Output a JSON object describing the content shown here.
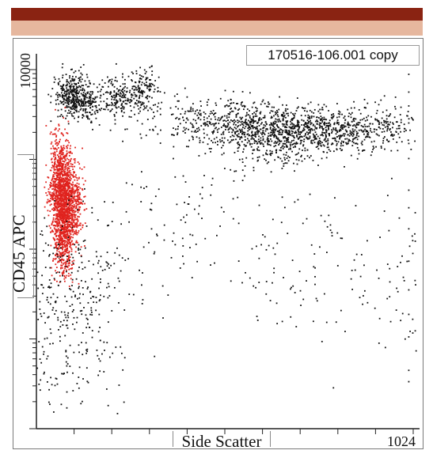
{
  "header": {
    "bar_color": "#8a2312",
    "subbar_color": "#e6b79e"
  },
  "plot": {
    "file_name": "170516-106.001 copy"
  },
  "chart_data": {
    "type": "scatter",
    "title": "",
    "xlabel": "Side Scatter",
    "ylabel": "CD45 APC",
    "x_tick_labels": [
      "1024"
    ],
    "y_tick_labels": [
      "10000"
    ],
    "xlim": [
      0,
      1024
    ],
    "ylim": [
      1,
      10000
    ],
    "y_scale": "log",
    "grid": false,
    "legend": "none",
    "colors": {
      "gated": "#e0231e",
      "other": "#111111"
    },
    "series": [
      {
        "color": "#111111",
        "values": [
          [
            100,
            5600
          ],
          [
            95,
            5000
          ],
          [
            140,
            4200
          ],
          [
            220,
            4800
          ],
          [
            290,
            5900
          ]
        ]
      },
      {
        "color": "#111111",
        "values": [
          [
            500,
            2700
          ],
          [
            600,
            2400
          ],
          [
            700,
            2200
          ],
          [
            800,
            2000
          ],
          [
            650,
            1500
          ],
          [
            900,
            2300
          ]
        ]
      },
      {
        "color": "#e0231e",
        "values": [
          [
            60,
            400
          ],
          [
            65,
            800
          ],
          [
            70,
            200
          ],
          [
            80,
            500
          ],
          [
            100,
            300
          ],
          [
            75,
            120
          ]
        ]
      },
      {
        "color": "#111111",
        "values": [
          [
            60,
            30
          ],
          [
            65,
            10
          ],
          [
            80,
            60
          ],
          [
            90,
            5
          ],
          [
            150,
            40
          ],
          [
            400,
            300
          ],
          [
            700,
            80
          ],
          [
            1000,
            40
          ]
        ]
      }
    ]
  }
}
